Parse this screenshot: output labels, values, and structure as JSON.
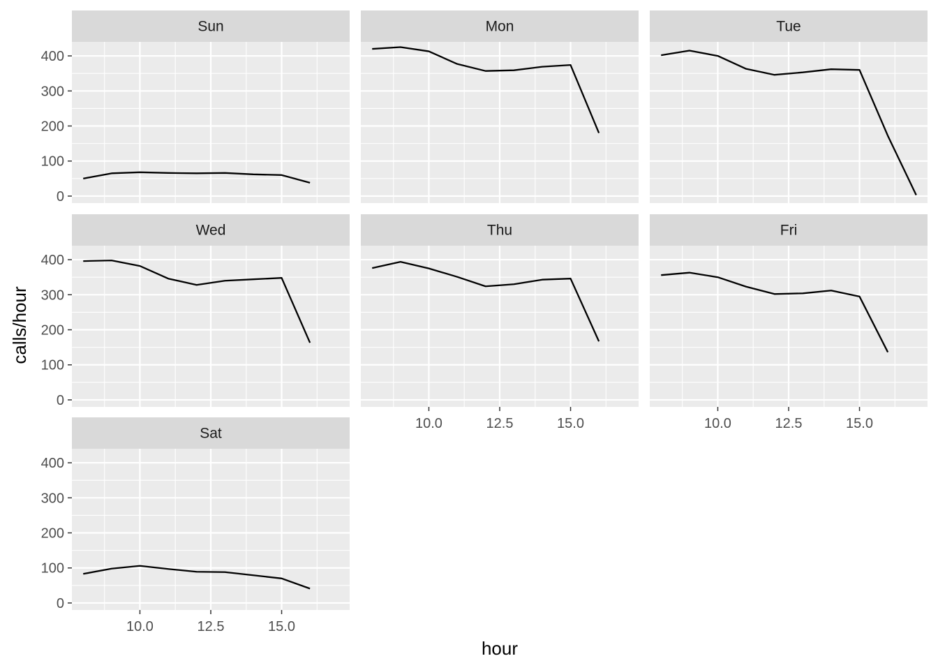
{
  "chart_data": {
    "type": "line",
    "xlabel": "hour",
    "ylabel": "calls/hour",
    "xlim": [
      7.6,
      17.4
    ],
    "ylim": [
      -20,
      440
    ],
    "x_ticks": [
      10.0,
      12.5,
      15.0
    ],
    "x_tick_labels": [
      "10.0",
      "12.5",
      "15.0"
    ],
    "y_ticks": [
      0,
      100,
      200,
      300,
      400
    ],
    "y_tick_labels": [
      "0",
      "100",
      "200",
      "300",
      "400"
    ],
    "grid": true,
    "facet_layout": "3 columns",
    "line_color": "#000000",
    "panel_color": "#ebebeb",
    "strip_color": "#d9d9d9",
    "grid_color": "#ffffff",
    "panels": [
      {
        "name": "Sun",
        "x": [
          8,
          9,
          10,
          11,
          12,
          13,
          14,
          15,
          16
        ],
        "y": [
          50,
          65,
          68,
          66,
          65,
          66,
          62,
          60,
          38
        ]
      },
      {
        "name": "Mon",
        "x": [
          8,
          9,
          10,
          11,
          12,
          13,
          14,
          15,
          16
        ],
        "y": [
          420,
          425,
          413,
          377,
          357,
          359,
          369,
          374,
          180
        ]
      },
      {
        "name": "Tue",
        "x": [
          8,
          9,
          10,
          11,
          12,
          13,
          14,
          15,
          16,
          17
        ],
        "y": [
          402,
          415,
          400,
          363,
          346,
          353,
          362,
          360,
          172,
          3
        ]
      },
      {
        "name": "Wed",
        "x": [
          8,
          9,
          10,
          11,
          12,
          13,
          14,
          15,
          16
        ],
        "y": [
          396,
          398,
          382,
          346,
          328,
          340,
          344,
          348,
          163
        ]
      },
      {
        "name": "Thu",
        "x": [
          8,
          9,
          10,
          11,
          12,
          13,
          14,
          15,
          16
        ],
        "y": [
          376,
          394,
          375,
          351,
          324,
          330,
          343,
          346,
          167
        ]
      },
      {
        "name": "Fri",
        "x": [
          8,
          9,
          10,
          11,
          12,
          13,
          14,
          15,
          16
        ],
        "y": [
          356,
          363,
          350,
          323,
          302,
          304,
          312,
          295,
          136
        ]
      },
      {
        "name": "Sat",
        "x": [
          8,
          9,
          10,
          11,
          12,
          13,
          14,
          15,
          16
        ],
        "y": [
          83,
          98,
          106,
          97,
          89,
          88,
          79,
          70,
          41
        ]
      }
    ]
  }
}
